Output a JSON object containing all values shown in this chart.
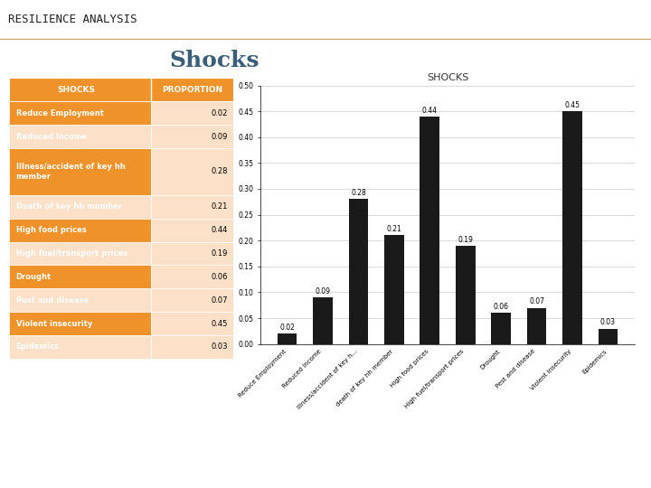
{
  "title": "RESILIENCE ANALYSIS",
  "subtitle": "Shocks",
  "chart_title": "SHOCKS",
  "table_header": [
    "SHOCKS",
    "PROPORTION"
  ],
  "categories": [
    "Reduce Employment",
    "Reduced Income",
    "Illness/accident of key hh\nmember",
    "Death of key hh member",
    "High food prices",
    "High fuel/transport prices",
    "Drought",
    "Pest and disease",
    "Violent insecurity",
    "Epidemics"
  ],
  "bar_labels": [
    "Reduce Employment",
    "Reduced Income",
    "Illness/accident of key h...",
    "death of key hh member",
    "High food prices",
    "High fuel/transport prices",
    "Drought",
    "Pest and disease",
    "Violent insecurity",
    "Epidemics"
  ],
  "values": [
    0.02,
    0.09,
    0.28,
    0.21,
    0.44,
    0.19,
    0.06,
    0.07,
    0.45,
    0.03
  ],
  "bar_color": "#1a1a1a",
  "header_bg": "#f0922a",
  "header_text": "#ffffff",
  "row_bg_dark": "#f0922a",
  "row_bg_light": "#fce0c8",
  "title_bar_bg": "#efefeb",
  "title_bar_border": "#c8a96e",
  "subtitle_color": "#3a5f7a",
  "footer_bg": "#2e6090",
  "footer_line_bg": "#555555",
  "ylim": [
    0,
    0.5
  ],
  "ytick_step": 0.05,
  "fig_bg": "#ffffff"
}
